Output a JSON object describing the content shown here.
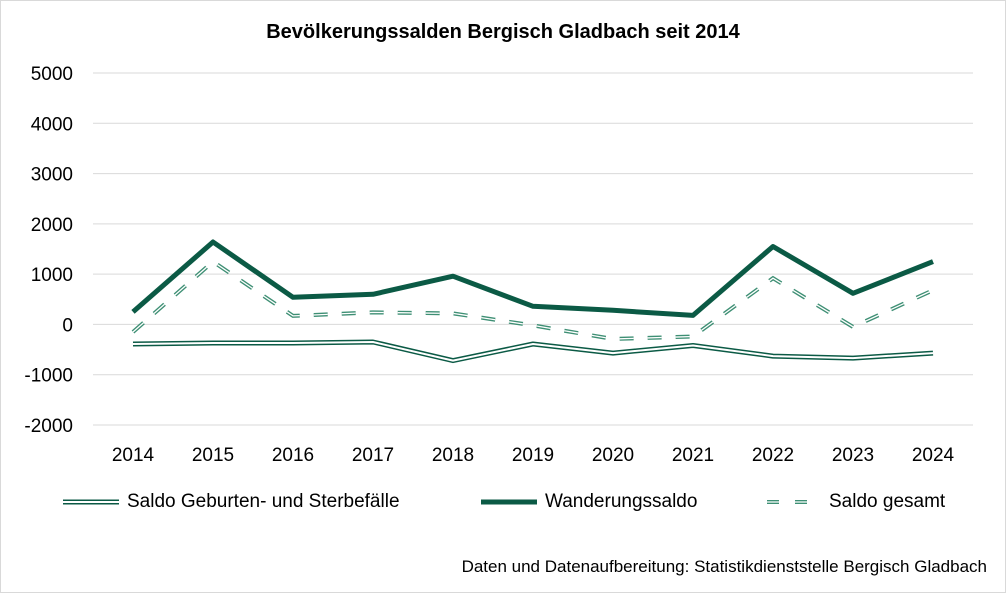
{
  "chart_data": {
    "type": "line",
    "title": "Bevölkerungssalden Bergisch Gladbach seit 2014",
    "categories": [
      "2014",
      "2015",
      "2016",
      "2017",
      "2018",
      "2019",
      "2020",
      "2021",
      "2022",
      "2023",
      "2024"
    ],
    "ylim": [
      -2000,
      5000
    ],
    "yticks": [
      5000,
      4000,
      3000,
      2000,
      1000,
      0,
      -1000,
      -2000
    ],
    "ytick_labels": [
      "5000",
      "4000",
      "3000",
      "2000",
      "1000",
      "0",
      "-1000",
      "-2000"
    ],
    "grid": true,
    "legend_position": "bottom",
    "series": [
      {
        "name": "Saldo Geburten- und Sterbefälle",
        "style": "double",
        "color": "#0b5a45",
        "values": [
          -390,
          -370,
          -370,
          -350,
          -720,
          -390,
          -570,
          -420,
          -630,
          -670,
          -570
        ]
      },
      {
        "name": "Wanderungssaldo",
        "style": "solid-thick",
        "color": "#0b5a45",
        "values": [
          250,
          1640,
          540,
          600,
          960,
          360,
          280,
          180,
          1550,
          620,
          1250
        ]
      },
      {
        "name": "Saldo gesamt",
        "style": "dashed-double",
        "color": "#3e8f74",
        "values": [
          -150,
          1250,
          170,
          240,
          220,
          -20,
          -290,
          -240,
          920,
          -50,
          680
        ]
      }
    ]
  },
  "source_note": "Daten und Datenaufbereitung: Statistikdienststelle Bergisch Gladbach"
}
